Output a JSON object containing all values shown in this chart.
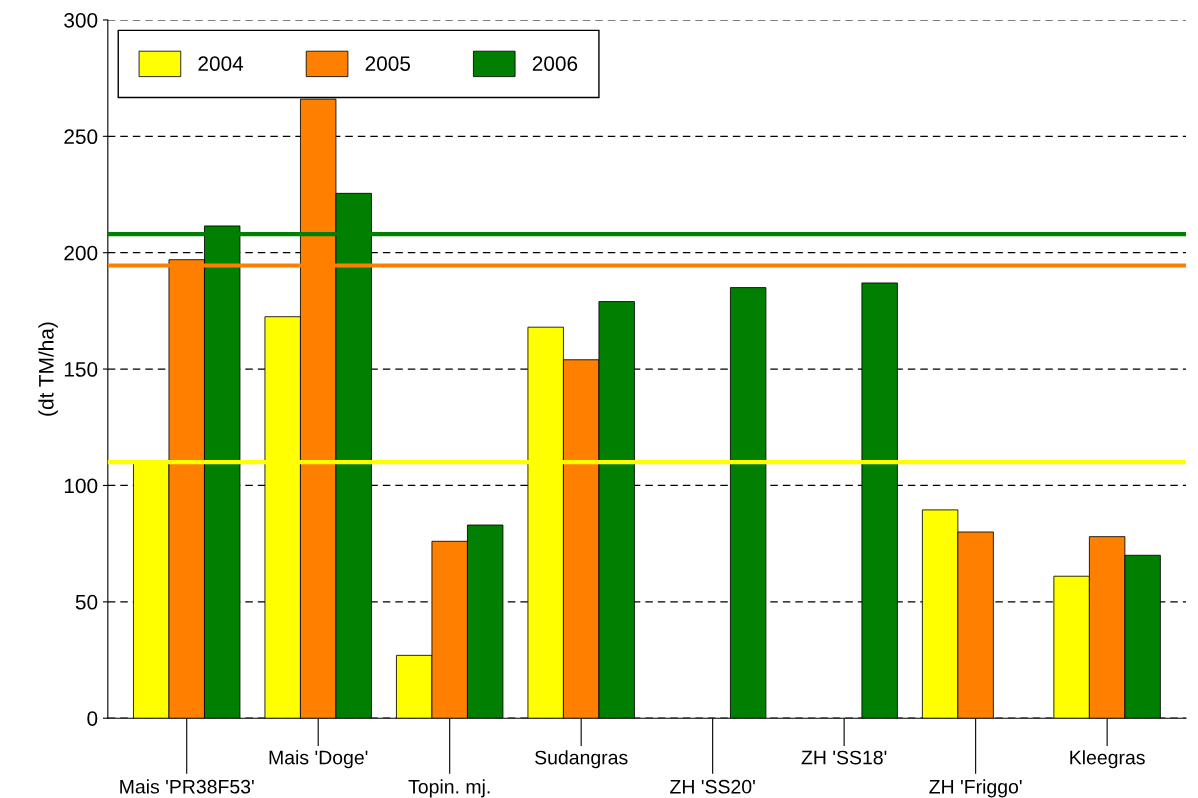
{
  "chart_data": {
    "type": "bar",
    "ylabel": "(dt TM/ha)",
    "categories": [
      "Mais 'PR38F53'",
      "Mais 'Doge'",
      "Topin. mj.",
      "Sudangras",
      "ZH 'SS20'",
      "ZH 'SS18'",
      "ZH 'Friggo'",
      "Kleegras"
    ],
    "series": [
      {
        "name": "2004",
        "color": "#ffff00",
        "values": [
          110,
          172.5,
          27,
          168,
          null,
          null,
          89.5,
          61
        ]
      },
      {
        "name": "2005",
        "color": "#ff7f00",
        "values": [
          197,
          266,
          76,
          154,
          null,
          null,
          80,
          78
        ]
      },
      {
        "name": "2006",
        "color": "#007f00",
        "values": [
          211.5,
          225.5,
          83,
          179,
          185,
          187,
          null,
          70
        ]
      }
    ],
    "ylim": [
      0,
      300
    ],
    "yticks": [
      0,
      50,
      100,
      150,
      200,
      250,
      300
    ],
    "grid": "y",
    "legend": "top left",
    "ref_lines": [
      {
        "axis": "y",
        "value": 110,
        "color": "#ffff00"
      },
      {
        "axis": "y",
        "value": 194.5,
        "color": "#ff7f00"
      },
      {
        "axis": "y",
        "value": 208,
        "color": "#007f00"
      }
    ]
  }
}
